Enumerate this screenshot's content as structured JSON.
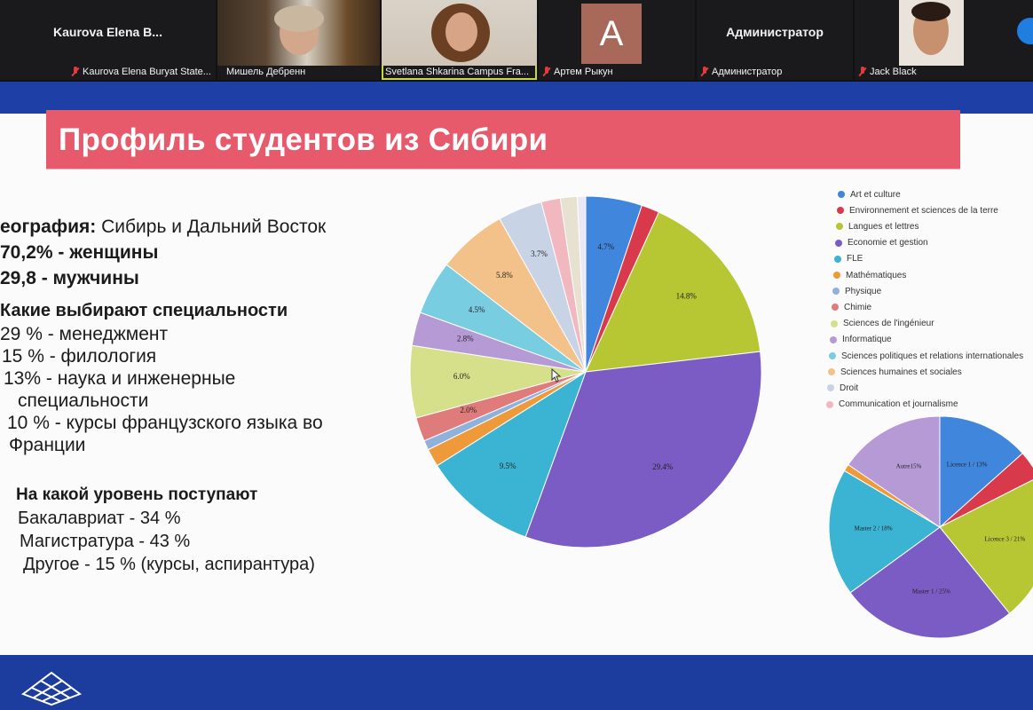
{
  "participants": [
    {
      "name_big": "Kaurova Elena B...",
      "caption": "Kaurova Elena Buryat State...",
      "muted": true
    },
    {
      "caption": "Мишель Дебренн",
      "muted": false
    },
    {
      "caption": "Svetlana Shkarina Campus Fra...",
      "muted": false,
      "active": true
    },
    {
      "avatar_letter": "A",
      "caption": "Артем Рыкун",
      "muted": true
    },
    {
      "name_big": "Администратор",
      "caption": "Администратор",
      "muted": true
    },
    {
      "caption": "Jack Black",
      "muted": true
    }
  ],
  "slide": {
    "title": "Профиль студентов из Сибири",
    "geo_label": "еография:",
    "geo_value": " Сибирь и Дальний Восток",
    "women": "70,2% - женщины",
    "men": "29,8 - мужчины",
    "specialties_title": "Какие выбирают специальности",
    "specialties": [
      "29 % - менеджмент",
      "15 % - филология",
      "13% - наука и инженерные",
      "специальности",
      "10 % -  курсы французского  языка во",
      "Франции"
    ],
    "level_title": "На какой уровень поступают",
    "levels": [
      "Бакалавриат  - 34 %",
      "Магистратура - 43 %",
      "Другое - 15 % (курсы, аспирантура)"
    ]
  },
  "legend": [
    {
      "label": "Art et culture",
      "color": "#3f86dc"
    },
    {
      "label": "Environnement et sciences de la terre",
      "color": "#d83a4b"
    },
    {
      "label": "Langues et lettres",
      "color": "#b7c633"
    },
    {
      "label": "Economie et gestion",
      "color": "#7b5cc4"
    },
    {
      "label": "FLE",
      "color": "#3bb3d2"
    },
    {
      "label": "Mathématiques",
      "color": "#ee9a3a"
    },
    {
      "label": "Physique",
      "color": "#8fb2dd"
    },
    {
      "label": "Chimie",
      "color": "#e07b7b"
    },
    {
      "label": "Sciences de l'ingénieur",
      "color": "#d6e08a"
    },
    {
      "label": "Informatique",
      "color": "#b69ad6"
    },
    {
      "label": "Sciences politiques et relations internationales",
      "color": "#79cde0"
    },
    {
      "label": "Sciences humaines et sociales",
      "color": "#f3c18a"
    },
    {
      "label": "Droit",
      "color": "#c9d3e6"
    },
    {
      "label": "Communication et journalisme",
      "color": "#f2b8c0"
    }
  ],
  "chart_data": [
    {
      "type": "pie",
      "slices": [
        {
          "label": "4.7%",
          "value": 4.7,
          "color": "#3f86dc"
        },
        {
          "label": "",
          "value": 1.5,
          "color": "#d83a4b"
        },
        {
          "label": "14.8%",
          "value": 14.8,
          "color": "#b7c633"
        },
        {
          "label": "29.4%",
          "value": 29.4,
          "color": "#7b5cc4"
        },
        {
          "label": "9.5%",
          "value": 9.5,
          "color": "#3bb3d2"
        },
        {
          "label": "",
          "value": 1.5,
          "color": "#ee9a3a"
        },
        {
          "label": "",
          "value": 0.8,
          "color": "#8fb2dd"
        },
        {
          "label": "2.0%",
          "value": 2.0,
          "color": "#e07b7b"
        },
        {
          "label": "6.0%",
          "value": 6.0,
          "color": "#d6e08a"
        },
        {
          "label": "2.8%",
          "value": 2.8,
          "color": "#b69ad6"
        },
        {
          "label": "4.5%",
          "value": 4.5,
          "color": "#79cde0"
        },
        {
          "label": "5.8%",
          "value": 5.8,
          "color": "#f3c18a"
        },
        {
          "label": "3.7%",
          "value": 3.7,
          "color": "#c9d3e6"
        },
        {
          "label": "",
          "value": 1.6,
          "color": "#f2b8c0"
        },
        {
          "label": "",
          "value": 1.4,
          "color": "#e7e2d0"
        },
        {
          "label": "",
          "value": 0.7,
          "color": "#ece7f5"
        }
      ]
    },
    {
      "type": "pie",
      "slices": [
        {
          "label": "Licence 1 / 13%",
          "value": 13,
          "color": "#3f86dc"
        },
        {
          "label": "",
          "value": 4,
          "color": "#d83a4b"
        },
        {
          "label": "Licence 3 / 21%",
          "value": 21,
          "color": "#b7c633"
        },
        {
          "label": "Master 1 / 25%",
          "value": 25,
          "color": "#7b5cc4"
        },
        {
          "label": "Master 2 / 18%",
          "value": 18,
          "color": "#3bb3d2"
        },
        {
          "label": "",
          "value": 1,
          "color": "#ee9a3a"
        },
        {
          "label": "Autre15%",
          "value": 15,
          "color": "#b69ad6"
        }
      ]
    }
  ]
}
